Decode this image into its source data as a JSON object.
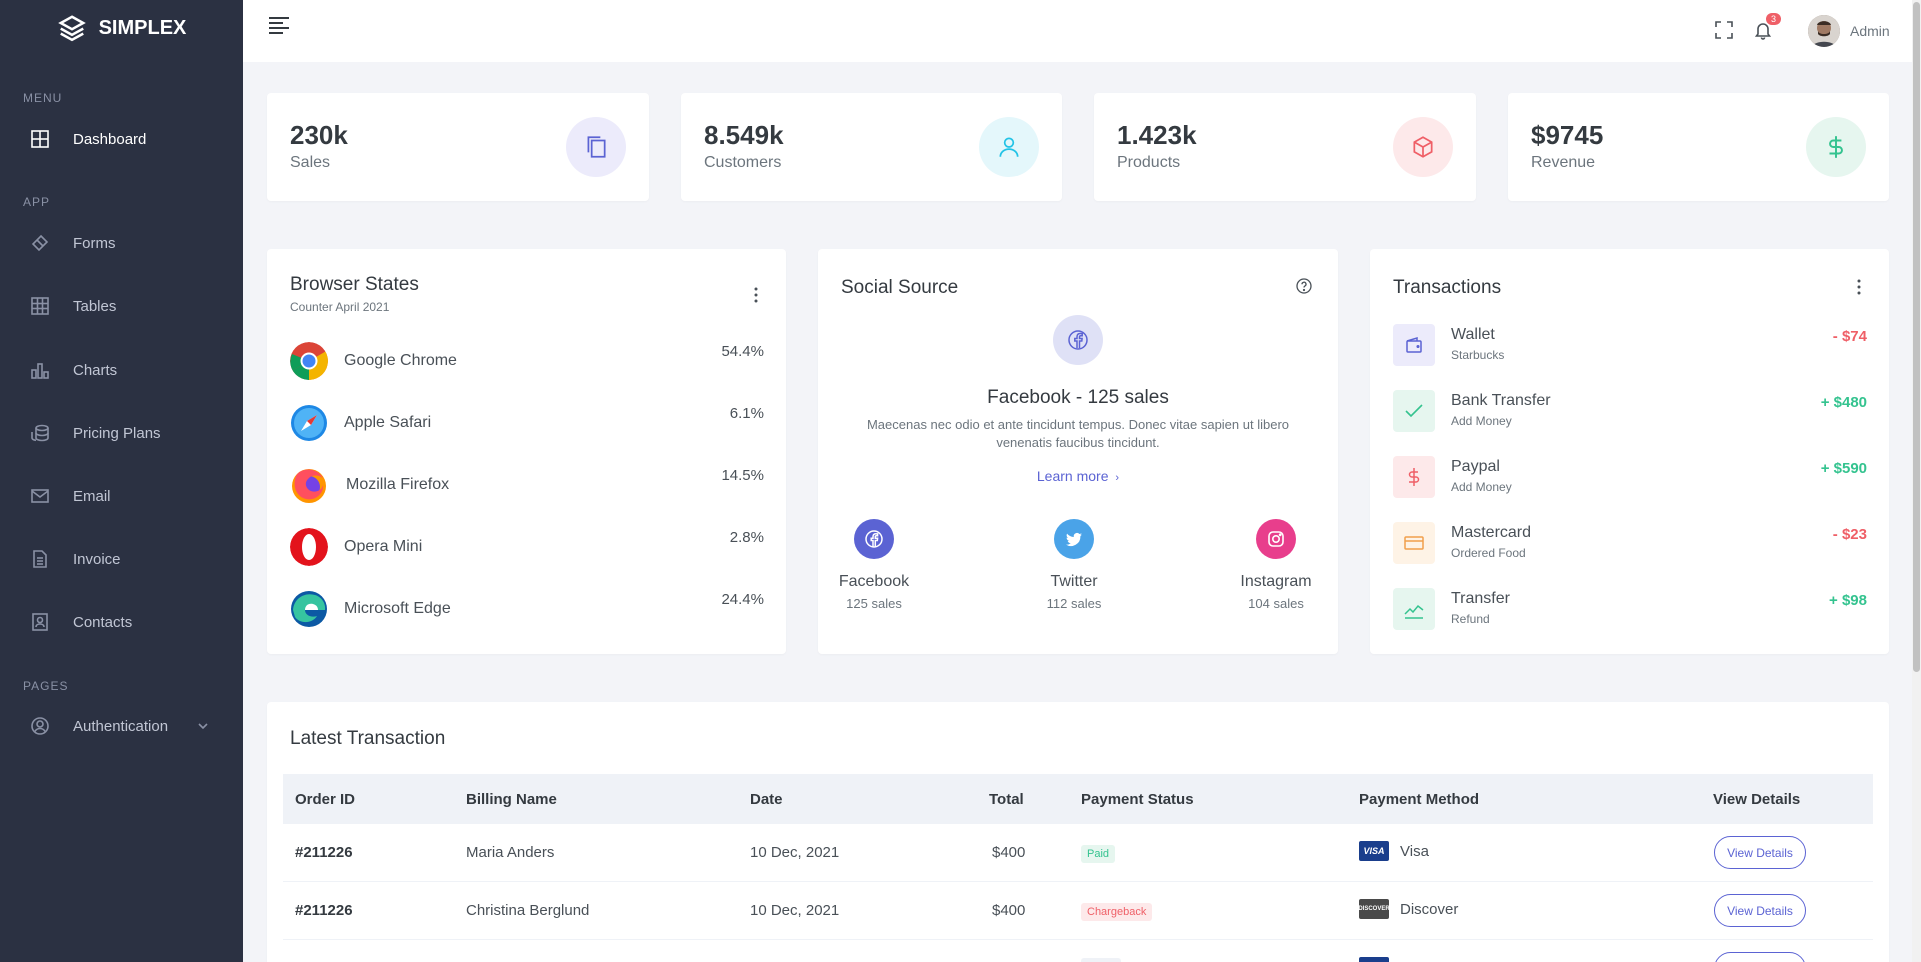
{
  "brand": {
    "name": "SIMPLEX"
  },
  "sidebar": {
    "sections": [
      {
        "title": "MENU"
      },
      {
        "title": "APP"
      },
      {
        "title": "PAGES"
      }
    ],
    "items": [
      {
        "label": "Dashboard",
        "icon": "grid-icon"
      },
      {
        "label": "Forms",
        "icon": "eraser-icon"
      },
      {
        "label": "Tables",
        "icon": "table-icon"
      },
      {
        "label": "Charts",
        "icon": "bar-chart-icon"
      },
      {
        "label": "Pricing Plans",
        "icon": "coins-icon"
      },
      {
        "label": "Email",
        "icon": "mail-icon"
      },
      {
        "label": "Invoice",
        "icon": "document-icon"
      },
      {
        "label": "Contacts",
        "icon": "contact-card-icon"
      },
      {
        "label": "Authentication",
        "icon": "user-circle-icon"
      }
    ]
  },
  "topbar": {
    "notification_count": "3",
    "user_name": "Admin"
  },
  "stats": [
    {
      "value": "230k",
      "label": "Sales",
      "color": "#5b63d3",
      "bg": "#ecebfb"
    },
    {
      "value": "8.549k",
      "label": "Customers",
      "color": "#22c3e6",
      "bg": "#e4f7fb"
    },
    {
      "value": "1.423k",
      "label": "Products",
      "color": "#ef5f67",
      "bg": "#fde9ea"
    },
    {
      "value": "$9745",
      "label": "Revenue",
      "color": "#34c38f",
      "bg": "#e6f6ef"
    }
  ],
  "browser_states": {
    "title": "Browser States",
    "subtitle": "Counter April 2021",
    "rows": [
      {
        "name": "Google Chrome",
        "pct": "54.4%"
      },
      {
        "name": "Apple Safari",
        "pct": "6.1%"
      },
      {
        "name": "Mozilla Firefox",
        "pct": "14.5%"
      },
      {
        "name": "Opera Mini",
        "pct": "2.8%"
      },
      {
        "name": "Microsoft Edge",
        "pct": "24.4%"
      }
    ]
  },
  "social_source": {
    "title": "Social Source",
    "headline_name": "Facebook",
    "headline_sep": " - ",
    "headline_sales": "125 sales",
    "description": "Maecenas nec odio et ante tincidunt tempus. Donec vitae sapien ut libero venenatis faucibus tincidunt.",
    "learn_more": "Learn more",
    "sources": [
      {
        "name": "Facebook",
        "count": "125 sales",
        "color": "#5b63d3"
      },
      {
        "name": "Twitter",
        "count": "112 sales",
        "color": "#4aa3e8"
      },
      {
        "name": "Instagram",
        "count": "104 sales",
        "color": "#e83e8c"
      }
    ]
  },
  "transactions": {
    "title": "Transactions",
    "rows": [
      {
        "name": "Wallet",
        "sub": "Starbucks",
        "amount": "- $74",
        "positive": false
      },
      {
        "name": "Bank Transfer",
        "sub": "Add Money",
        "amount": "+ $480",
        "positive": true
      },
      {
        "name": "Paypal",
        "sub": "Add Money",
        "amount": "+ $590",
        "positive": true
      },
      {
        "name": "Mastercard",
        "sub": "Ordered Food",
        "amount": "- $23",
        "positive": false
      },
      {
        "name": "Transfer",
        "sub": "Refund",
        "amount": "+ $98",
        "positive": true
      }
    ]
  },
  "latest": {
    "title": "Latest Transaction",
    "columns": [
      "Order ID",
      "Billing Name",
      "Date",
      "Total",
      "Payment Status",
      "Payment Method",
      "View Details"
    ],
    "rows": [
      {
        "id": "#211226",
        "name": "Maria Anders",
        "date": "10 Dec, 2021",
        "total": "$400",
        "status": "Paid",
        "method": "Visa",
        "logo": "VISA",
        "action": "View Details"
      },
      {
        "id": "#211226",
        "name": "Christina Berglund",
        "date": "10 Dec, 2021",
        "total": "$400",
        "status": "Chargeback",
        "method": "Discover",
        "logo": "DISCOVER",
        "action": "View Details"
      }
    ]
  }
}
